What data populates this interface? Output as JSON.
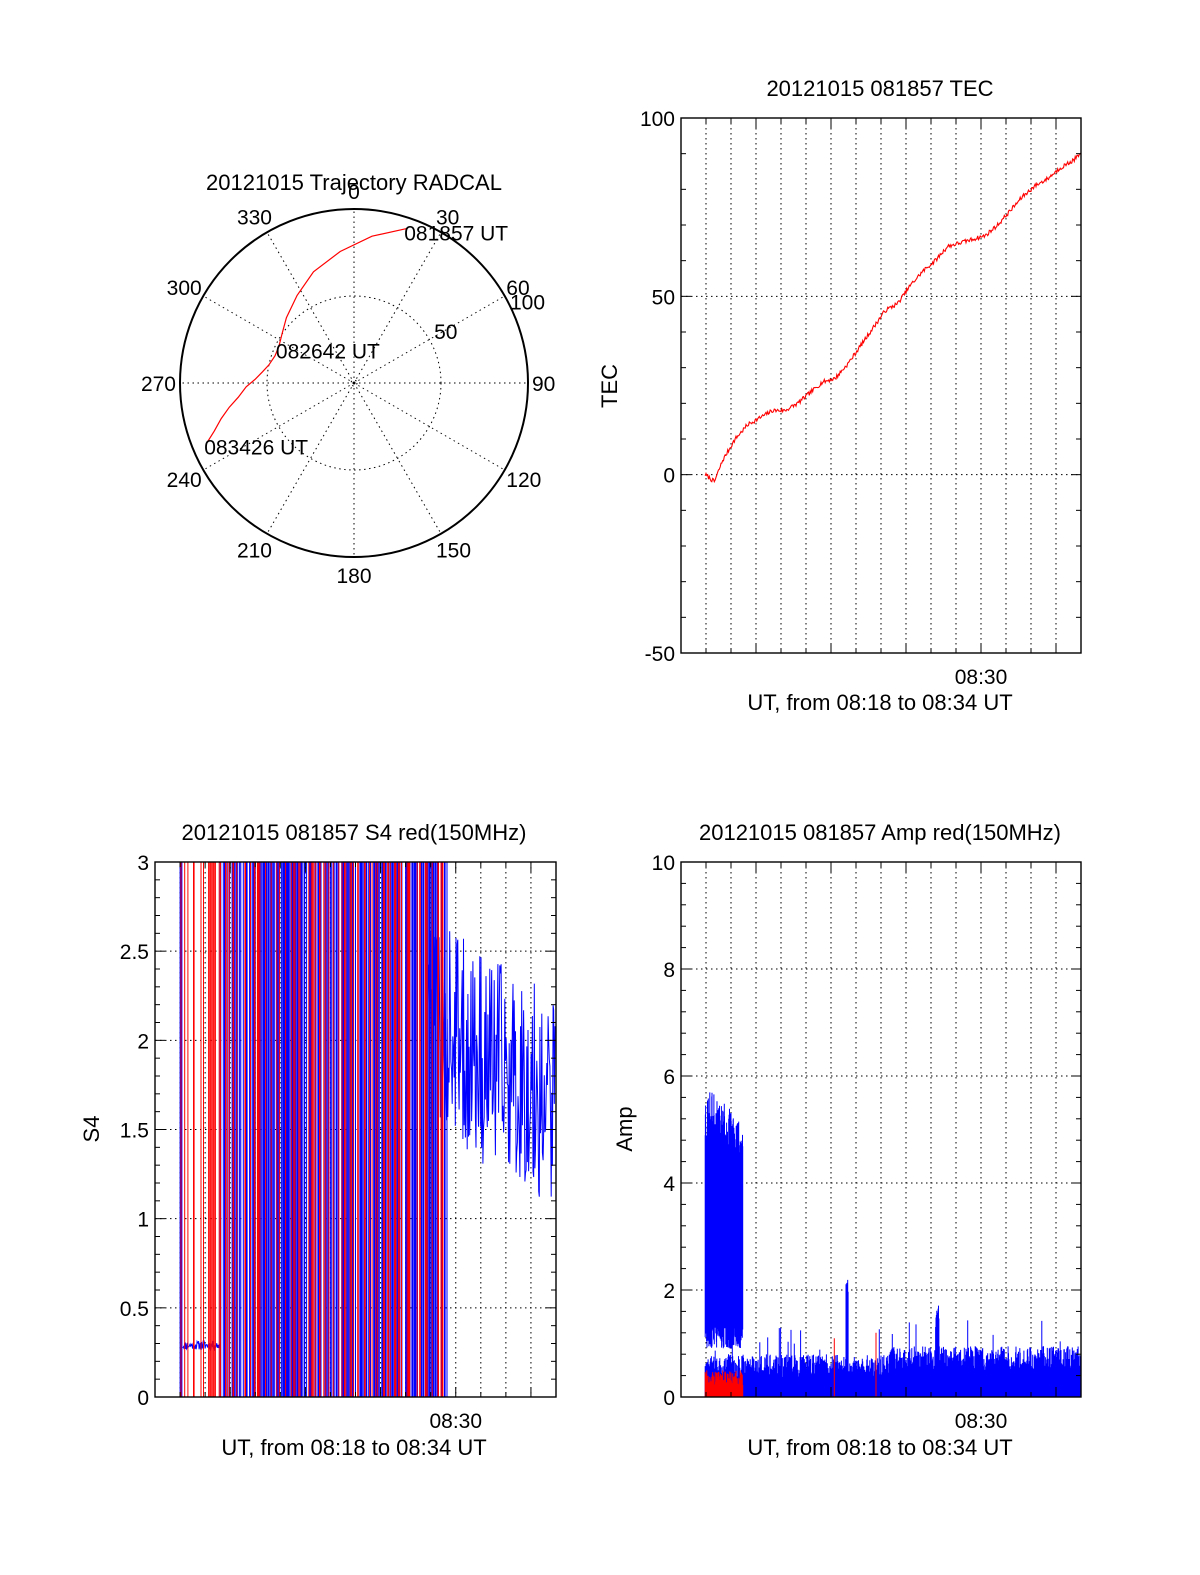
{
  "figure": {
    "background": "#ffffff",
    "colors": {
      "red": "#ff0000",
      "blue": "#0000ff",
      "axes": "#000000"
    }
  },
  "chart_data": [
    {
      "id": "trajectory",
      "type": "polar",
      "title": "20121015 Trajectory RADCAL",
      "angle_labels": [
        "0",
        "30",
        "60",
        "90",
        "120",
        "150",
        "180",
        "210",
        "240",
        "270",
        "300",
        "330"
      ],
      "angle_values_deg": [
        0,
        30,
        60,
        90,
        120,
        150,
        180,
        210,
        240,
        270,
        300,
        330
      ],
      "radial_label_ticks": [
        "50",
        "100"
      ],
      "radial_rings": [
        0,
        50,
        100
      ],
      "radial_max": 100,
      "series": [
        {
          "color": "#ff0000",
          "azimuth_deg": [
            19,
            7,
            354,
            340,
            327,
            314,
            304,
            296,
            289,
            282,
            277,
            272,
            268,
            263,
            259,
            255,
            251,
            248
          ],
          "radius": [
            94,
            85,
            76,
            68,
            60,
            54,
            50,
            48,
            48,
            50,
            53,
            57,
            62,
            67,
            73,
            79,
            85,
            91
          ]
        }
      ],
      "annotations": [
        {
          "text": "081857 UT",
          "azimuth_deg": 19,
          "radius": 94
        },
        {
          "text": "082642 UT",
          "azimuth_deg": 296,
          "radius": 48
        },
        {
          "text": "083426 UT",
          "azimuth_deg": 248,
          "radius": 91
        }
      ]
    },
    {
      "id": "tec",
      "type": "line",
      "title": "20121015 081857 TEC",
      "xlabel": "UT, from 08:18 to 08:34 UT",
      "ylabel": "TEC",
      "xlim": [
        0,
        960
      ],
      "ylim": [
        -50,
        100
      ],
      "yticks": [
        -50,
        0,
        50,
        100
      ],
      "ytick_labels": [
        "-50",
        "0",
        "50",
        "100"
      ],
      "xtick_labels": [
        {
          "t": 720,
          "label": "08:30"
        }
      ],
      "grid": true,
      "series": [
        {
          "color": "#ff0000",
          "t": [
            58,
            80,
            100,
            130,
            160,
            190,
            220,
            250,
            280,
            310,
            340,
            370,
            400,
            430,
            460,
            490,
            520,
            550,
            580,
            610,
            640,
            670,
            700,
            730,
            760,
            790,
            820,
            850,
            880,
            910,
            940,
            960
          ],
          "values": [
            0,
            -2,
            4,
            10,
            14,
            16,
            18,
            18,
            20,
            23,
            26,
            27,
            31,
            36,
            41,
            46,
            48,
            53,
            57,
            60,
            64,
            65,
            66,
            67,
            70,
            74,
            78,
            81,
            83,
            86,
            88,
            90
          ]
        }
      ]
    },
    {
      "id": "s4",
      "type": "line",
      "title": "20121015 081857 S4 red(150MHz)",
      "xlabel": "UT, from 08:18 to 08:34 UT",
      "ylabel": "S4",
      "xlim": [
        0,
        960
      ],
      "ylim": [
        0,
        3
      ],
      "yticks": [
        0,
        0.5,
        1,
        1.5,
        2,
        2.5,
        3
      ],
      "ytick_labels": [
        "0",
        "0.5",
        "1",
        "1.5",
        "2",
        "2.5",
        "3"
      ],
      "xtick_labels": [
        {
          "t": 720,
          "label": "08:30"
        }
      ],
      "grid": true,
      "series": [
        {
          "name": "",
          "color": "#ff0000",
          "t": [
            0,
            960
          ],
          "values": [
            0,
            0
          ]
        },
        {
          "name": "",
          "color": "#0000ff",
          "t": [
            0,
            960
          ],
          "values": [
            0,
            0
          ]
        }
      ]
    },
    {
      "id": "amp",
      "type": "line",
      "title": "20121015 081857 Amp red(150MHz)",
      "xlabel": "UT, from 08:18 to 08:34 UT",
      "ylabel": "Amp",
      "xlim": [
        0,
        960
      ],
      "ylim": [
        0,
        10
      ],
      "yticks": [
        0,
        2,
        4,
        6,
        8,
        10
      ],
      "ytick_labels": [
        "0",
        "2",
        "4",
        "6",
        "8",
        "10"
      ],
      "xtick_labels": [
        {
          "t": 720,
          "label": "08:30"
        }
      ],
      "grid": true,
      "series": [
        {
          "name": "",
          "color": "#0000ff",
          "t": [
            0,
            960
          ],
          "values": [
            0,
            0
          ]
        },
        {
          "name": "",
          "color": "#ff0000",
          "t": [
            0,
            960
          ],
          "values": [
            0,
            0
          ]
        }
      ]
    }
  ]
}
